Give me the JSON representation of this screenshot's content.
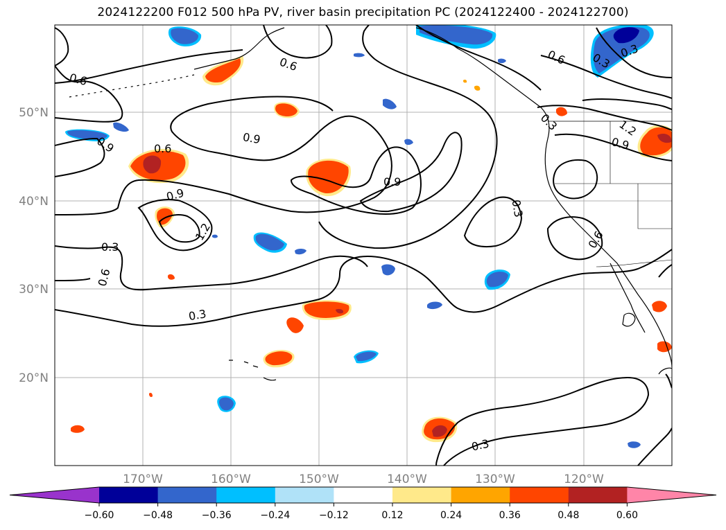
{
  "title": "2024122200 F012 500 hPa PV, river basin precipitation PC (2024122400 - 2024122700)",
  "lat_labels": [
    "50°N",
    "40°N",
    "30°N",
    "20°N"
  ],
  "lon_labels": [
    "170°W",
    "160°W",
    "150°W",
    "140°W",
    "130°W",
    "120°W"
  ],
  "colorbar": {
    "ticks": [
      "−0.60",
      "−0.48",
      "−0.36",
      "−0.24",
      "−0.12",
      "0.12",
      "0.24",
      "0.36",
      "0.48",
      "0.60"
    ],
    "colors": [
      "#9933cc",
      "#000099",
      "#3366cc",
      "#00bfff",
      "#b0e2f8",
      "#ffffff",
      "#ffe98a",
      "#ffa500",
      "#ff4500",
      "#b22222",
      "#ff85a8"
    ]
  },
  "contour_labels": [
    "0.6",
    "0.6",
    "0.9",
    "0.6",
    "0.9",
    "0.9",
    "0.6",
    "0.3",
    "0.3",
    "0.6",
    "0.3",
    "0.3",
    "1.2",
    "0.9",
    "0.3",
    "0.6",
    "0.9",
    "0.3",
    "1.2",
    "0.3"
  ],
  "legend_colors": {
    "coast": "#000000",
    "grid": "#b0b0b0",
    "contour": "#000000"
  }
}
